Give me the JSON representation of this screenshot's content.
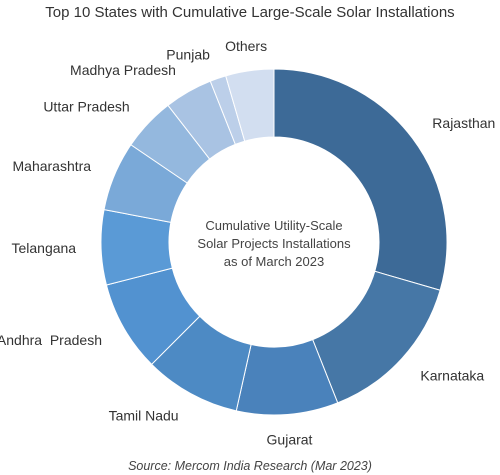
{
  "chart_data": {
    "type": "pie",
    "title": "Top 10 States with Cumulative Large-Scale Solar Installations",
    "center_label": [
      "Cumulative Utility-Scale",
      "Solar Projects Installations",
      "as of March 2023"
    ],
    "source": "Source: Mercom India Research (Mar 2023)",
    "categories": [
      "Rajasthan",
      "Karnataka",
      "Gujarat",
      "Tamil Nadu",
      "Andhra  Pradesh",
      "Telangana",
      "Maharashtra",
      "Uttar Pradesh",
      "Madhya Pradesh",
      "Punjab",
      "Others"
    ],
    "values": [
      29.5,
      14.5,
      9.5,
      9.0,
      8.5,
      7.0,
      6.5,
      5.0,
      4.5,
      1.5,
      4.5
    ],
    "colors": [
      "#3d6a97",
      "#4677a6",
      "#4a82bb",
      "#4d8ac4",
      "#5292d0",
      "#5a9ad6",
      "#7aa9d8",
      "#94b8de",
      "#a9c3e3",
      "#bccfe9",
      "#d2def0"
    ]
  }
}
